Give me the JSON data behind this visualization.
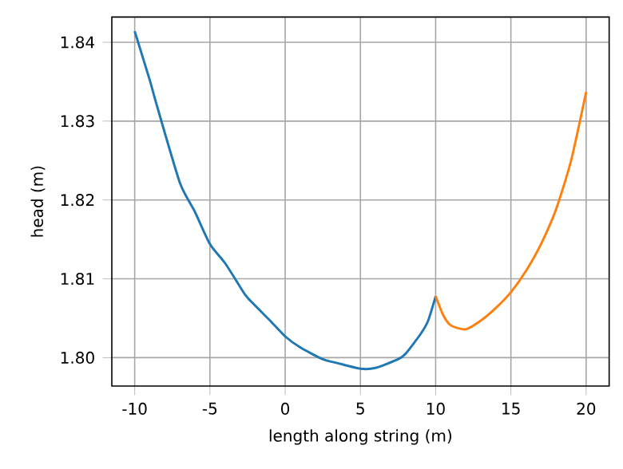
{
  "chart_data": {
    "type": "line",
    "xlabel": "length along string (m)",
    "ylabel": "head (m)",
    "xlim": [
      -11.52,
      21.53
    ],
    "ylim": [
      1.7964,
      1.8432
    ],
    "xticks": [
      -10,
      -5,
      0,
      5,
      10,
      15,
      20
    ],
    "yticks": [
      {
        "value": 1.8,
        "label": "1.80"
      },
      1.81,
      1.82,
      1.83,
      1.84
    ],
    "grid": true,
    "series": [
      {
        "color": "#1f77b4",
        "x": [
          -10,
          -9,
          -8.5,
          -7,
          -6,
          -5,
          -4,
          -3,
          -2.5,
          -1,
          0,
          1,
          2.5,
          3.5,
          5,
          6,
          7.5,
          8,
          9,
          9.5,
          10
        ],
        "values": [
          1.8414,
          1.8352,
          1.8318,
          1.8222,
          1.8185,
          1.8144,
          1.812,
          1.809,
          1.8076,
          1.8047,
          1.8027,
          1.8013,
          1.7998,
          1.7993,
          1.7986,
          1.7987,
          1.7998,
          1.8005,
          1.803,
          1.8047,
          1.8078
        ]
      },
      {
        "color": "#ff7f0e",
        "x": [
          10,
          10.5,
          11,
          12,
          13,
          14,
          15,
          16,
          17,
          18,
          19,
          20
        ],
        "values": [
          1.8078,
          1.8054,
          1.8041,
          1.8036,
          1.8047,
          1.8063,
          1.8083,
          1.811,
          1.8144,
          1.8188,
          1.825,
          1.8337
        ]
      }
    ]
  }
}
